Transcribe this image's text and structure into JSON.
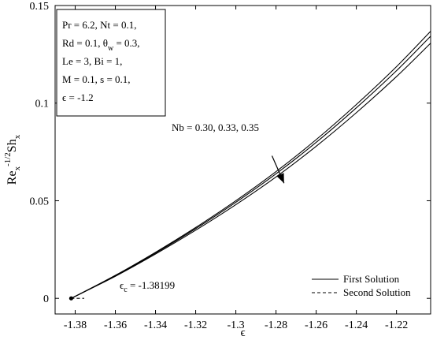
{
  "chart_data": {
    "type": "line",
    "title": "",
    "xlabel": "ϵ",
    "ylabel": {
      "base": "Re",
      "sub": "x",
      "sup": "-1/2",
      "base2": "Sh",
      "sub2": "x"
    },
    "xlim": [
      -1.39,
      -1.203
    ],
    "ylim": [
      -0.008,
      0.15
    ],
    "xticks": [
      -1.38,
      -1.36,
      -1.34,
      -1.32,
      -1.3,
      -1.28,
      -1.26,
      -1.24,
      -1.22
    ],
    "yticks": [
      0,
      0.05,
      0.1,
      0.15
    ],
    "xtick_labels": [
      "-1.38",
      "-1.36",
      "-1.34",
      "-1.32",
      "-1.3",
      "-1.28",
      "-1.26",
      "-1.24",
      "-1.22"
    ],
    "ytick_labels": [
      "0",
      "0.05",
      "0.1",
      "0.15"
    ],
    "grid": false,
    "series": [
      {
        "style": "solid",
        "x": [
          -1.38199,
          -1.36,
          -1.34,
          -1.32,
          -1.3,
          -1.28,
          -1.26,
          -1.24,
          -1.22,
          -1.203
        ],
        "y": [
          0,
          0.0113,
          0.0227,
          0.0349,
          0.048,
          0.0622,
          0.0779,
          0.0951,
          0.1136,
          0.1307
        ]
      },
      {
        "style": "solid",
        "x": [
          -1.38199,
          -1.36,
          -1.34,
          -1.32,
          -1.3,
          -1.28,
          -1.26,
          -1.24,
          -1.22,
          -1.203
        ],
        "y": [
          0,
          0.0116,
          0.0232,
          0.0357,
          0.0492,
          0.0638,
          0.0799,
          0.0976,
          0.1166,
          0.1343
        ]
      },
      {
        "style": "solid",
        "x": [
          -1.38199,
          -1.36,
          -1.34,
          -1.32,
          -1.3,
          -1.28,
          -1.26,
          -1.24,
          -1.22,
          -1.203
        ],
        "y": [
          0,
          0.0118,
          0.0236,
          0.0363,
          0.05,
          0.0649,
          0.0813,
          0.0993,
          0.1187,
          0.1368
        ]
      },
      {
        "style": "dashed",
        "x": [
          -1.38199,
          -1.3755
        ],
        "y": [
          0,
          0
        ]
      }
    ],
    "critical_point": {
      "x": -1.38199,
      "y": 0,
      "label": "ϵ",
      "label_sub": "c",
      "label_value": " = -1.38199"
    },
    "arrow": {
      "label": "Nb = 0.30, 0.33, 0.35",
      "from": [
        -1.282,
        0.073
      ],
      "to": [
        -1.276,
        0.059
      ]
    },
    "legend": {
      "position": "bottom-right",
      "entries": [
        {
          "label": "First Solution",
          "style": "solid"
        },
        {
          "label": "Second Solution",
          "style": "dashed"
        }
      ]
    },
    "annotation_box": {
      "position": "top-left",
      "lines": [
        {
          "text": "Pr = 6.2, Nt = 0.1,"
        },
        {
          "text": "Rd = 0.1, θ",
          "sub": "w",
          "tail": " = 0.3,"
        },
        {
          "text": "Le = 3, Bi = 1,"
        },
        {
          "text": "M = 0.1, s = 0.1,"
        },
        {
          "text": "ϵ = -1.2"
        }
      ]
    }
  }
}
